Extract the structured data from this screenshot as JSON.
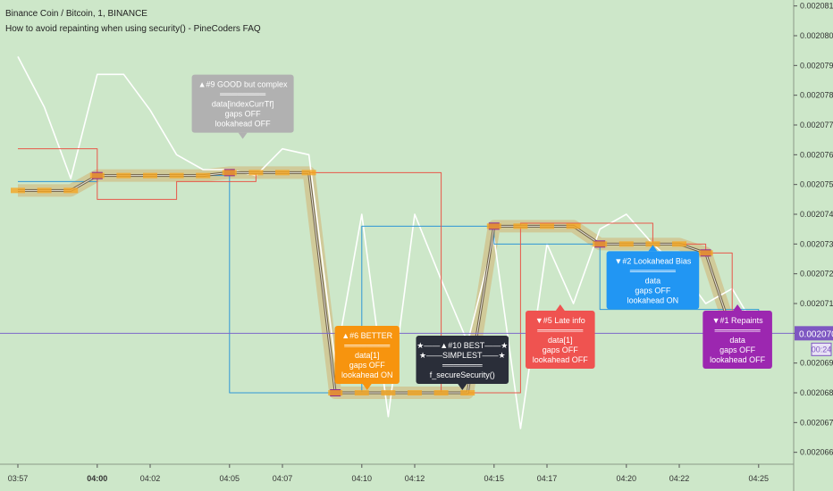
{
  "header": {
    "symbol": "Binance Coin / Bitcoin, 1, BINANCE",
    "study": "How to avoid repainting when using security() - PineCoders FAQ"
  },
  "colors": {
    "background": "#cde7c9",
    "white_line": "#ffffff",
    "blue_line": "#2f97d6",
    "red_line": "#e8584a",
    "band": "#d0c088",
    "dark_line": "#6d6048",
    "orange_marker": "#f5a623",
    "purple_marker": "#8e2a8e",
    "price_line": "#7b68c9",
    "price_label": "#7e57c2"
  },
  "chart_data": {
    "type": "line",
    "x": [
      "03:57",
      "03:58",
      "03:59",
      "04:00",
      "04:01",
      "04:02",
      "04:03",
      "04:04",
      "04:05",
      "04:06",
      "04:07",
      "04:08",
      "04:09",
      "04:10",
      "04:11",
      "04:12",
      "04:13",
      "04:14",
      "04:15",
      "04:16",
      "04:17",
      "04:18",
      "04:19",
      "04:20",
      "04:21",
      "04:22",
      "04:23",
      "04:24",
      "04:25"
    ],
    "x_tick_labels": [
      "03:57",
      "04:00",
      "04:02",
      "04:05",
      "04:07",
      "04:10",
      "04:12",
      "04:15",
      "04:17",
      "04:20",
      "04:22",
      "04:25"
    ],
    "y_tick_labels": [
      "0.00206600",
      "0.00206700",
      "0.00206800",
      "0.00206900",
      "0.00207000",
      "0.00207100",
      "0.00207200",
      "0.00207300",
      "0.00207400",
      "0.00207500",
      "0.00207600",
      "0.00207700",
      "0.00207800",
      "0.00207900",
      "0.00208000",
      "0.00208100"
    ],
    "ylim": [
      0.0020656,
      0.0020812
    ],
    "current_price_label": "0.00207000",
    "countdown_label": "00:24",
    "series": [
      {
        "color": "#ffffff",
        "values": [
          0.0020793,
          0.0020776,
          0.0020752,
          0.0020787,
          0.0020787,
          0.0020775,
          0.002076,
          0.0020755,
          0.0020755,
          0.0020753,
          0.0020762,
          0.002076,
          0.002069,
          0.002074,
          0.0020672,
          0.002074,
          0.0020718,
          0.0020697,
          0.0020732,
          0.0020668,
          0.002073,
          0.002071,
          0.0020735,
          0.002074,
          0.002073,
          0.0020722,
          0.002071,
          0.0020715,
          0.00207
        ]
      },
      {
        "color": "#2f97d6",
        "values": [
          0.0020751,
          0.0020751,
          0.0020751,
          0.0020753,
          0.0020753,
          0.0020753,
          0.0020753,
          0.0020753,
          0.002068,
          0.002068,
          0.002068,
          0.002068,
          0.002068,
          0.0020736,
          0.0020736,
          0.0020736,
          0.0020736,
          0.0020736,
          0.002073,
          0.002073,
          0.002073,
          0.002073,
          0.0020708,
          0.0020708,
          0.0020708,
          0.0020708,
          0.0020708,
          0.0020708,
          0.00207
        ]
      },
      {
        "color": "#e8584a",
        "values": [
          0.0020762,
          0.0020762,
          0.0020762,
          0.0020745,
          0.0020745,
          0.0020745,
          0.0020751,
          0.0020751,
          0.0020751,
          0.0020754,
          0.0020754,
          0.0020754,
          0.0020754,
          0.0020754,
          0.0020754,
          0.0020754,
          0.002068,
          0.002068,
          0.002068,
          0.0020737,
          0.0020737,
          0.0020737,
          0.0020737,
          0.0020737,
          0.002073,
          0.002073,
          0.0020727,
          0.00207,
          0.00207
        ]
      },
      {
        "color": "#6d6048",
        "values": [
          0.0020748,
          0.0020748,
          0.0020748,
          0.0020753,
          0.0020753,
          0.0020753,
          0.0020753,
          0.0020753,
          0.0020754,
          0.0020754,
          0.0020754,
          0.0020754,
          0.002068,
          0.002068,
          0.002068,
          0.002068,
          0.002068,
          0.002068,
          0.0020736,
          0.0020736,
          0.0020736,
          0.0020736,
          0.002073,
          0.002073,
          0.002073,
          0.002073,
          0.0020727,
          0.00207,
          0.00207
        ]
      }
    ],
    "labels": [
      {
        "id": "l9",
        "lines": [
          "▲#9 GOOD but complex",
          "════════",
          "data[indexCurrTf]",
          "gaps OFF",
          "lookahead OFF"
        ],
        "bg": "#b1b1b1",
        "x": 8.5,
        "y": 0.0020765,
        "dir": "down"
      },
      {
        "id": "l6",
        "lines": [
          "▲#6 BETTER",
          "════════",
          "data[1]",
          "gaps OFF",
          "lookahead ON"
        ],
        "bg": "#f7940e",
        "x": 13.2,
        "y": 0.002068,
        "dir": "down"
      },
      {
        "id": "l10",
        "lines": [
          "★——▲#10 BEST——★",
          "★——SIMPLEST——★",
          "═══════",
          "f_secureSecurity()"
        ],
        "bg": "#2a2e39",
        "x": 16.8,
        "y": 0.002068,
        "dir": "down"
      },
      {
        "id": "l5",
        "lines": [
          "▼#5 Late info",
          "════════",
          "data[1]",
          "gaps OFF",
          "lookahead OFF"
        ],
        "bg": "#ef5350",
        "x": 20.5,
        "y": 0.002071,
        "dir": "up"
      },
      {
        "id": "l2",
        "lines": [
          "▼#2 Lookahead Bias",
          "════════",
          "data",
          "gaps OFF",
          "lookahead ON"
        ],
        "bg": "#2196f3",
        "x": 24.0,
        "y": 0.002073,
        "dir": "up"
      },
      {
        "id": "l1",
        "lines": [
          "▼#1 Repaints",
          "════════",
          "data",
          "gaps OFF",
          "lookahead OFF"
        ],
        "bg": "#9c27b0",
        "x": 27.2,
        "y": 0.002071,
        "dir": "up"
      }
    ]
  }
}
